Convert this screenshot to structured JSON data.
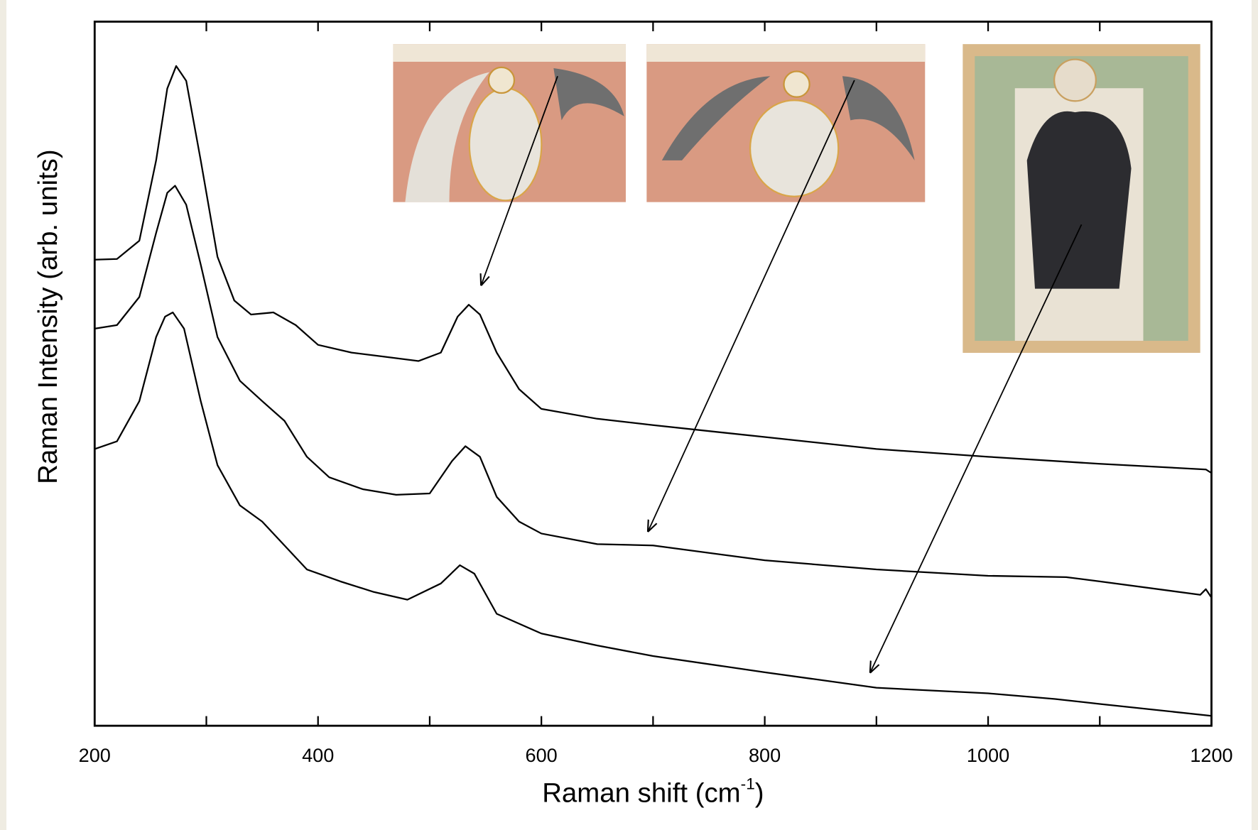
{
  "chart_data": {
    "type": "line",
    "x_label": [
      "Raman shift (cm",
      "-1",
      ")"
    ],
    "y_label": "Raman Intensity (arb. units)",
    "xlim": [
      200,
      1200
    ],
    "xticks": [
      200,
      400,
      600,
      800,
      1000,
      1200
    ],
    "xminorticks": [
      300,
      500,
      700,
      900,
      1100
    ],
    "ylim": [
      0,
      100
    ],
    "series": [
      {
        "color": "#000000",
        "x": [
          200,
          220,
          240,
          255,
          265,
          273,
          282,
          295,
          310,
          325,
          340,
          360,
          380,
          400,
          430,
          460,
          490,
          510,
          525,
          535,
          545,
          560,
          580,
          600,
          650,
          700,
          800,
          900,
          1000,
          1100,
          1195,
          1200
        ],
        "values": [
          66.2,
          66.3,
          68.9,
          80.3,
          90.5,
          93.7,
          91.6,
          80.3,
          66.6,
          60.4,
          58.4,
          58.7,
          56.9,
          54.1,
          53.0,
          52.4,
          51.8,
          53.0,
          58.1,
          59.8,
          58.4,
          53.0,
          47.8,
          45.0,
          43.6,
          42.7,
          41.0,
          39.3,
          38.2,
          37.2,
          36.4,
          35.9
        ]
      },
      {
        "color": "#000000",
        "x": [
          200,
          220,
          240,
          255,
          265,
          272,
          282,
          295,
          310,
          330,
          350,
          370,
          390,
          410,
          440,
          470,
          500,
          520,
          532,
          545,
          560,
          580,
          600,
          650,
          700,
          800,
          900,
          1000,
          1070,
          1100,
          1190,
          1195,
          1200
        ],
        "values": [
          56.4,
          56.9,
          60.9,
          70.0,
          75.7,
          76.7,
          74.0,
          65.5,
          55.2,
          49.0,
          46.1,
          43.3,
          38.2,
          35.3,
          33.6,
          32.8,
          33.0,
          37.6,
          39.7,
          38.2,
          32.5,
          29.0,
          27.3,
          25.8,
          25.6,
          23.5,
          22.2,
          21.3,
          21.1,
          20.5,
          18.6,
          19.4,
          18.2
        ]
      },
      {
        "color": "#000000",
        "x": [
          200,
          220,
          240,
          255,
          263,
          270,
          280,
          295,
          310,
          330,
          350,
          370,
          390,
          420,
          450,
          480,
          510,
          527,
          540,
          560,
          600,
          650,
          700,
          800,
          900,
          1000,
          1060,
          1100,
          1200
        ],
        "values": [
          39.3,
          40.4,
          46.1,
          55.2,
          58.1,
          58.7,
          56.4,
          46.1,
          37.0,
          31.3,
          29.0,
          25.6,
          22.2,
          20.5,
          19.0,
          17.9,
          20.2,
          22.8,
          21.6,
          15.9,
          13.1,
          11.4,
          9.9,
          7.6,
          5.4,
          4.6,
          3.8,
          3.1,
          1.4
        ]
      }
    ]
  }
}
